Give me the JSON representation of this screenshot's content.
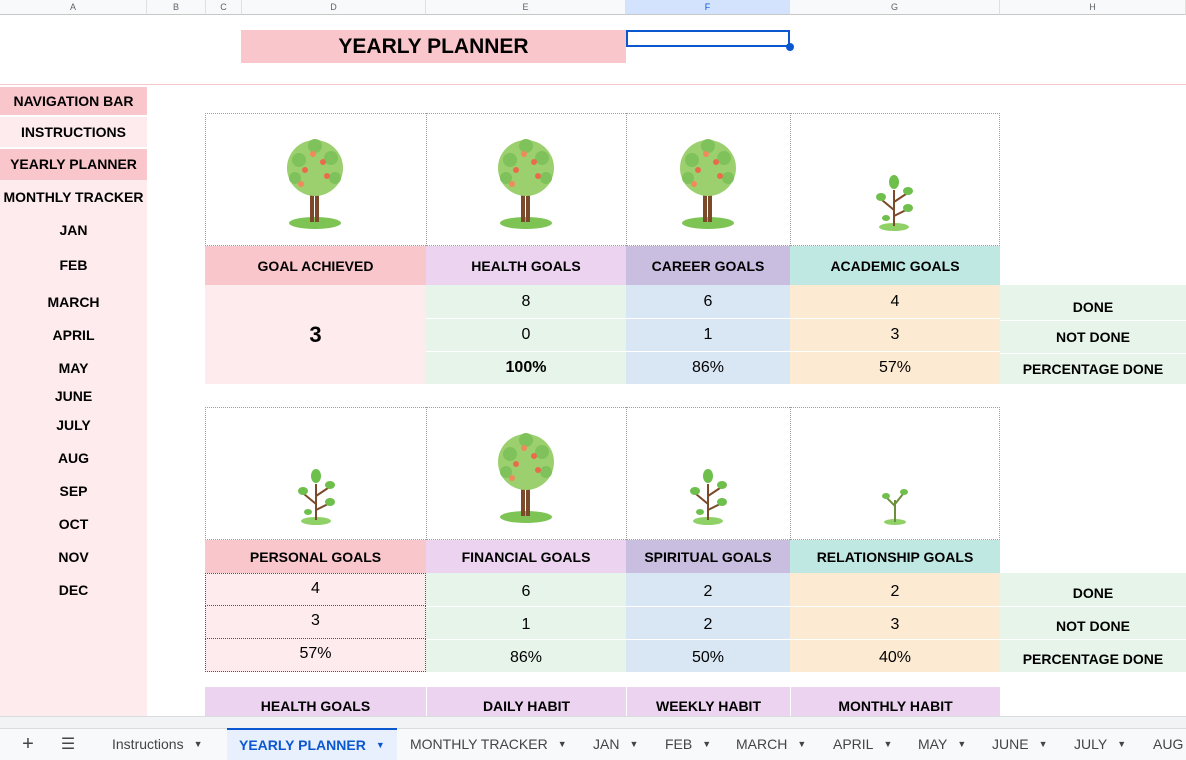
{
  "columns": [
    "A",
    "B",
    "C",
    "D",
    "E",
    "F",
    "G",
    "H"
  ],
  "title": "YEARLY PLANNER",
  "nav": [
    "NAVIGATION BAR",
    "INSTRUCTIONS",
    "YEARLY PLANNER",
    "MONTHLY TRACKER",
    "JAN",
    "FEB",
    "MARCH",
    "APRIL",
    "MAY",
    "JUNE",
    "JULY",
    "AUG",
    "SEP",
    "OCT",
    "NOV",
    "DEC"
  ],
  "section1": {
    "headers": [
      "GOAL ACHIEVED",
      "HEALTH GOALS",
      "CAREER GOALS",
      "ACADEMIC GOALS"
    ],
    "goal_achieved": "3",
    "done": [
      "8",
      "6",
      "4"
    ],
    "not_done": [
      "0",
      "1",
      "3"
    ],
    "pct": [
      "100%",
      "86%",
      "57%"
    ],
    "labels": [
      "DONE",
      "NOT DONE",
      "PERCENTAGE DONE"
    ]
  },
  "section2": {
    "headers": [
      "PERSONAL GOALS",
      "FINANCIAL GOALS",
      "SPIRITUAL GOALS",
      "RELATIONSHIP GOALS"
    ],
    "done": [
      "4",
      "6",
      "2",
      "2"
    ],
    "not_done": [
      "3",
      "1",
      "2",
      "3"
    ],
    "pct": [
      "57%",
      "86%",
      "50%",
      "40%"
    ],
    "labels": [
      "DONE",
      "NOT DONE",
      "PERCENTAGE DONE"
    ]
  },
  "section3": {
    "headers": [
      "HEALTH GOALS",
      "DAILY HABIT",
      "WEEKLY HABIT",
      "MONTHLY HABIT"
    ]
  },
  "tabs": [
    "Instructions",
    "YEARLY PLANNER",
    "MONTHLY TRACKER",
    "JAN",
    "FEB",
    "MARCH",
    "APRIL",
    "MAY",
    "JUNE",
    "JULY",
    "AUG"
  ],
  "colors": {
    "pink": "#f9c6cc",
    "light_pink": "#fdebed",
    "lavender": "#ecd3f0",
    "purple": "#c9bedf",
    "teal": "#bfe8e2",
    "green": "#e6f4ea",
    "blue": "#d9e6f4",
    "peach": "#fcebd2",
    "accent": "#0b57d0"
  }
}
